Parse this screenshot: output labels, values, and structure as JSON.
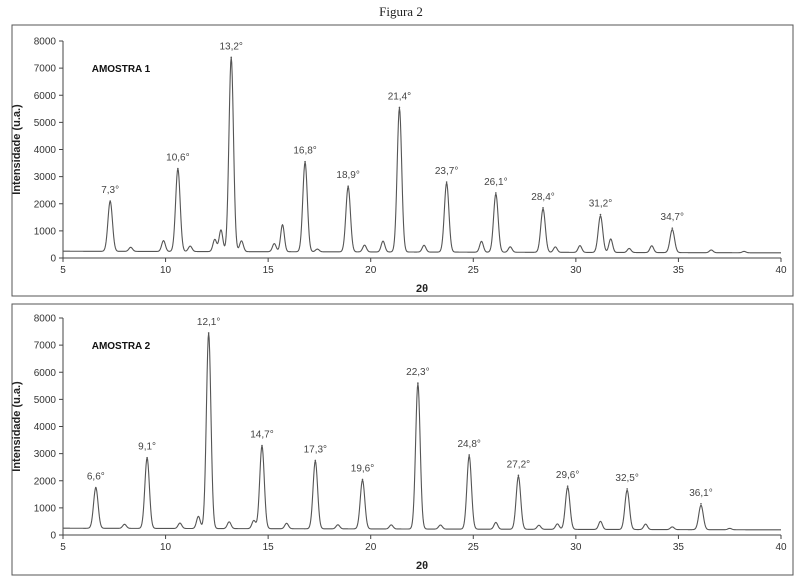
{
  "figure_title": "Figura 2",
  "chart_data": [
    {
      "type": "line",
      "sample_label": "AMOSTRA 1",
      "xlabel": "2θ",
      "ylabel": "Intensidade (u.a.)",
      "xlim": [
        5,
        40
      ],
      "ylim": [
        0,
        8000
      ],
      "x_ticks": [
        5,
        10,
        15,
        20,
        25,
        30,
        35,
        40
      ],
      "y_ticks": [
        0,
        1000,
        2000,
        3000,
        4000,
        5000,
        6000,
        7000,
        8000
      ],
      "baseline": 250,
      "peaks": [
        {
          "x": 7.3,
          "y": 2100,
          "label": "7,3°"
        },
        {
          "x": 10.6,
          "y": 3300,
          "label": "10,6°"
        },
        {
          "x": 13.2,
          "y": 7400,
          "label": "13,2°"
        },
        {
          "x": 16.8,
          "y": 3550,
          "label": "16,8°"
        },
        {
          "x": 18.9,
          "y": 2650,
          "label": "18,9°"
        },
        {
          "x": 21.4,
          "y": 5550,
          "label": "21,4°"
        },
        {
          "x": 23.7,
          "y": 2800,
          "label": "23,7°"
        },
        {
          "x": 26.1,
          "y": 2400,
          "label": "26,1°"
        },
        {
          "x": 28.4,
          "y": 1850,
          "label": "28,4°"
        },
        {
          "x": 31.2,
          "y": 1600,
          "label": "31,2°"
        },
        {
          "x": 34.7,
          "y": 1100,
          "label": "34,7°"
        }
      ],
      "minor_peaks": [
        {
          "x": 8.3,
          "y": 400
        },
        {
          "x": 9.9,
          "y": 650
        },
        {
          "x": 11.2,
          "y": 450
        },
        {
          "x": 12.4,
          "y": 700
        },
        {
          "x": 12.7,
          "y": 1050
        },
        {
          "x": 13.7,
          "y": 650
        },
        {
          "x": 15.3,
          "y": 550
        },
        {
          "x": 15.7,
          "y": 1250
        },
        {
          "x": 17.4,
          "y": 350
        },
        {
          "x": 19.7,
          "y": 500
        },
        {
          "x": 20.6,
          "y": 650
        },
        {
          "x": 22.6,
          "y": 500
        },
        {
          "x": 25.4,
          "y": 650
        },
        {
          "x": 26.8,
          "y": 450
        },
        {
          "x": 29.0,
          "y": 450
        },
        {
          "x": 30.2,
          "y": 500
        },
        {
          "x": 31.7,
          "y": 750
        },
        {
          "x": 32.6,
          "y": 400
        },
        {
          "x": 33.7,
          "y": 500
        },
        {
          "x": 36.6,
          "y": 350
        },
        {
          "x": 38.2,
          "y": 300
        }
      ]
    },
    {
      "type": "line",
      "sample_label": "AMOSTRA 2",
      "xlabel": "2θ",
      "ylabel": "Intensidade (u.a.)",
      "xlim": [
        5,
        40
      ],
      "ylim": [
        0,
        8000
      ],
      "x_ticks": [
        5,
        10,
        15,
        20,
        25,
        30,
        35,
        40
      ],
      "y_ticks": [
        0,
        1000,
        2000,
        3000,
        4000,
        5000,
        6000,
        7000,
        8000
      ],
      "baseline": 250,
      "peaks": [
        {
          "x": 6.6,
          "y": 1750,
          "label": "6,6°"
        },
        {
          "x": 9.1,
          "y": 2850,
          "label": "9,1°"
        },
        {
          "x": 12.1,
          "y": 7450,
          "label": "12,1°"
        },
        {
          "x": 14.7,
          "y": 3300,
          "label": "14,7°"
        },
        {
          "x": 17.3,
          "y": 2750,
          "label": "17,3°"
        },
        {
          "x": 19.6,
          "y": 2050,
          "label": "19,6°"
        },
        {
          "x": 22.3,
          "y": 5600,
          "label": "22,3°"
        },
        {
          "x": 24.8,
          "y": 2950,
          "label": "24,8°"
        },
        {
          "x": 27.2,
          "y": 2200,
          "label": "27,2°"
        },
        {
          "x": 29.6,
          "y": 1800,
          "label": "29,6°"
        },
        {
          "x": 32.5,
          "y": 1700,
          "label": "32,5°"
        },
        {
          "x": 36.1,
          "y": 1150,
          "label": "36,1°"
        }
      ],
      "minor_peaks": [
        {
          "x": 8.0,
          "y": 400
        },
        {
          "x": 10.7,
          "y": 450
        },
        {
          "x": 11.6,
          "y": 700
        },
        {
          "x": 13.1,
          "y": 500
        },
        {
          "x": 14.3,
          "y": 550
        },
        {
          "x": 15.9,
          "y": 450
        },
        {
          "x": 18.4,
          "y": 400
        },
        {
          "x": 21.0,
          "y": 400
        },
        {
          "x": 23.4,
          "y": 400
        },
        {
          "x": 26.1,
          "y": 500
        },
        {
          "x": 28.2,
          "y": 400
        },
        {
          "x": 29.1,
          "y": 450
        },
        {
          "x": 31.2,
          "y": 550
        },
        {
          "x": 33.4,
          "y": 450
        },
        {
          "x": 34.7,
          "y": 350
        },
        {
          "x": 37.5,
          "y": 300
        }
      ]
    }
  ]
}
